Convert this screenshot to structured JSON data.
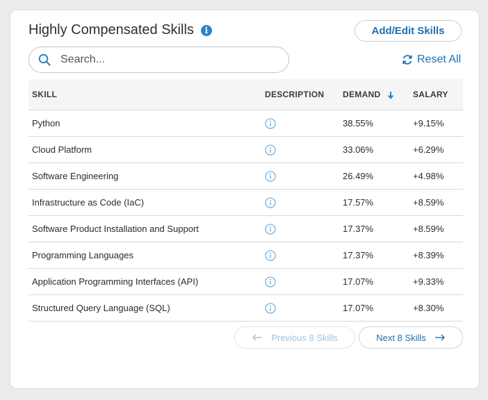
{
  "title": "Highly Compensated Skills",
  "add_edit_label": "Add/Edit Skills",
  "search": {
    "placeholder": "Search...",
    "value": ""
  },
  "reset_label": "Reset All",
  "columns": {
    "skill": "SKILL",
    "description": "DESCRIPTION",
    "demand": "DEMAND",
    "salary": "SALARY"
  },
  "rows": [
    {
      "skill": "Python",
      "demand": "38.55%",
      "salary": "+9.15%"
    },
    {
      "skill": "Cloud Platform",
      "demand": "33.06%",
      "salary": "+6.29%"
    },
    {
      "skill": "Software Engineering",
      "demand": "26.49%",
      "salary": "+4.98%"
    },
    {
      "skill": "Infrastructure as Code (IaC)",
      "demand": "17.57%",
      "salary": "+8.59%"
    },
    {
      "skill": "Software Product Installation and Support",
      "demand": "17.37%",
      "salary": "+8.59%"
    },
    {
      "skill": "Programming Languages",
      "demand": "17.37%",
      "salary": "+8.39%"
    },
    {
      "skill": "Application Programming Interfaces (API)",
      "demand": "17.07%",
      "salary": "+9.33%"
    },
    {
      "skill": "Structured Query Language (SQL)",
      "demand": "17.07%",
      "salary": "+8.30%"
    }
  ],
  "pager": {
    "prev_label": "Previous 8 Skills",
    "next_label": "Next 8 Skills"
  },
  "colors": {
    "accent": "#1f6fb3",
    "info": "#2a86c9",
    "disabled": "#9cc3e2"
  },
  "icons": {
    "title_info": "info-icon",
    "search": "search-icon",
    "reset": "refresh-icon",
    "description": "info-outline-icon",
    "sort": "arrow-down-icon"
  }
}
